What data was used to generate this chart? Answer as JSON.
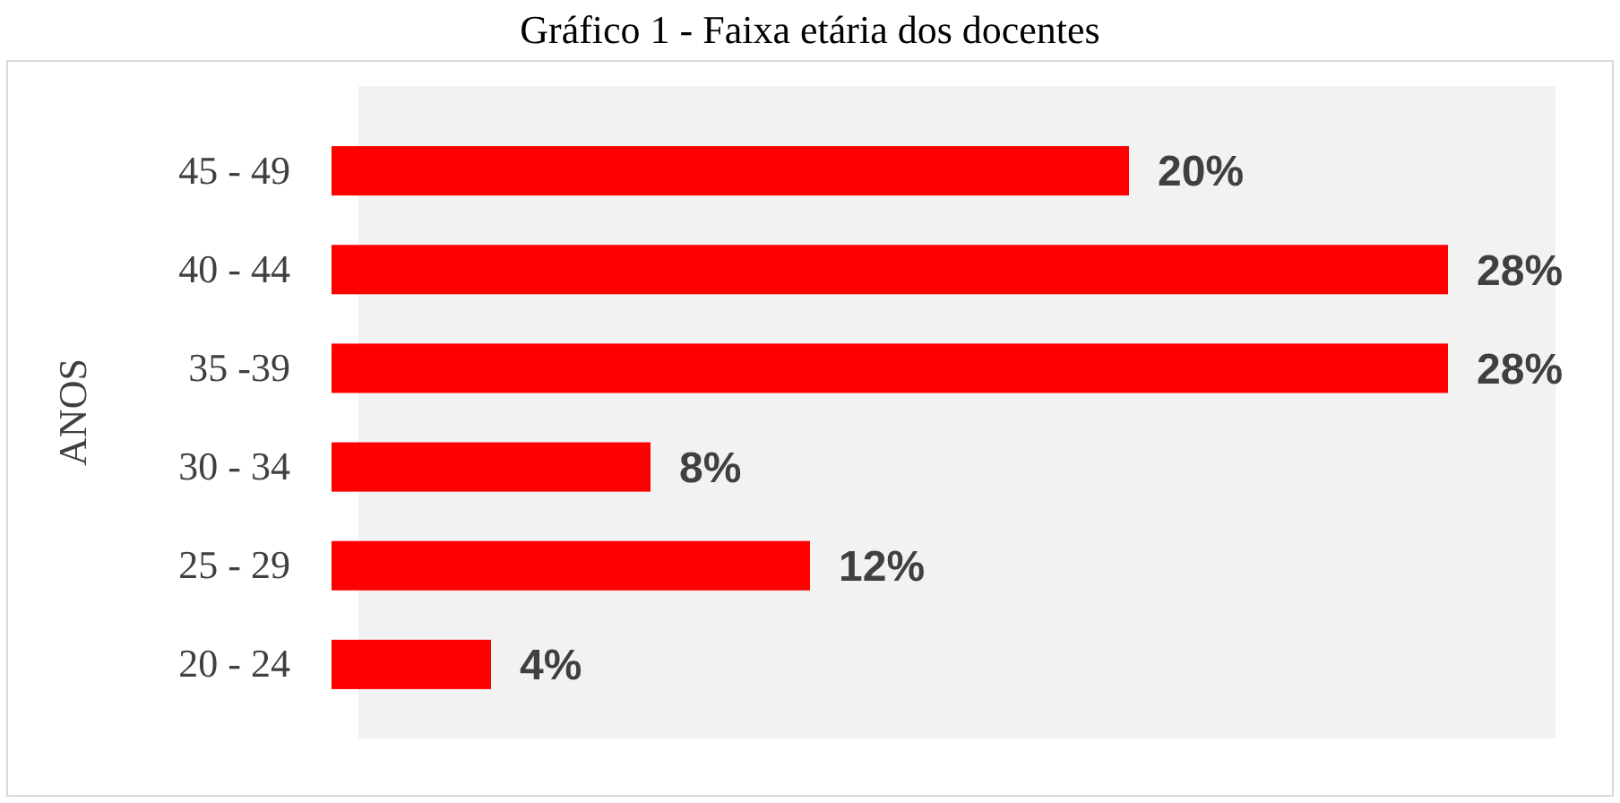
{
  "chart_data": {
    "type": "bar",
    "orientation": "horizontal",
    "title": "Gráfico 1 - Faixa etária dos docentes",
    "ylabel": "ANOS",
    "categories": [
      "45 - 49",
      "40 - 44",
      "35 -39",
      "30 - 34",
      "25 - 29",
      "20 - 24"
    ],
    "values": [
      20,
      28,
      28,
      8,
      12,
      4
    ],
    "color": "#ff0000",
    "value_labels": [
      "20%",
      "28%",
      "28%",
      "8%",
      "12%",
      "4%"
    ]
  }
}
